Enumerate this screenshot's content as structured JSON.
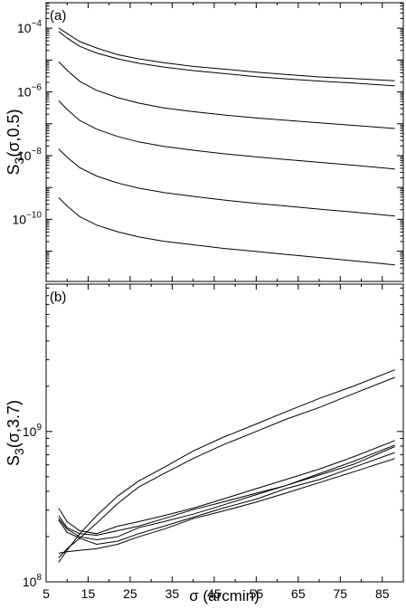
{
  "figure": {
    "xlabel": "σ (arcmin)"
  },
  "chart_data": [
    {
      "type": "line",
      "panel_label": "(a)",
      "ylabel_main": "S",
      "ylabel_sub": "3",
      "ylabel_args": "(σ,0.5)",
      "yscale": "log",
      "xlim": [
        5,
        90
      ],
      "ylim_log10": [
        -11.95,
        -3.2
      ],
      "ytick_labels": [
        {
          "log": -4,
          "base": "10",
          "exp": "−4"
        },
        {
          "log": -6,
          "base": "10",
          "exp": "−6"
        },
        {
          "log": -8,
          "base": "10",
          "exp": "−8"
        },
        {
          "log": -10,
          "base": "10",
          "exp": "−10"
        }
      ],
      "x": [
        8,
        10,
        13,
        17,
        22,
        27,
        33,
        40,
        47,
        55,
        62,
        70,
        78,
        88
      ],
      "series": [
        {
          "log10_values": [
            -3.99,
            -4.17,
            -4.42,
            -4.62,
            -4.83,
            -4.96,
            -5.08,
            -5.2,
            -5.28,
            -5.38,
            -5.45,
            -5.53,
            -5.58,
            -5.65
          ]
        },
        {
          "log10_values": [
            -4.1,
            -4.31,
            -4.57,
            -4.78,
            -4.96,
            -5.1,
            -5.22,
            -5.33,
            -5.42,
            -5.52,
            -5.59,
            -5.66,
            -5.72,
            -5.81
          ]
        },
        {
          "log10_values": [
            -5.05,
            -5.32,
            -5.67,
            -5.95,
            -6.18,
            -6.35,
            -6.5,
            -6.62,
            -6.72,
            -6.82,
            -6.89,
            -6.97,
            -7.05,
            -7.15
          ]
        },
        {
          "log10_values": [
            -6.28,
            -6.55,
            -6.9,
            -7.17,
            -7.4,
            -7.57,
            -7.71,
            -7.83,
            -7.94,
            -8.04,
            -8.12,
            -8.21,
            -8.3,
            -8.42
          ]
        },
        {
          "log10_values": [
            -7.79,
            -8.05,
            -8.38,
            -8.64,
            -8.86,
            -9.02,
            -9.16,
            -9.28,
            -9.39,
            -9.5,
            -9.58,
            -9.68,
            -9.77,
            -9.9
          ]
        },
        {
          "log10_values": [
            -9.32,
            -9.58,
            -9.92,
            -10.18,
            -10.39,
            -10.55,
            -10.69,
            -10.8,
            -10.91,
            -11.01,
            -11.1,
            -11.2,
            -11.3,
            -11.43
          ]
        }
      ]
    },
    {
      "type": "line",
      "panel_label": "(b)",
      "ylabel_main": "S",
      "ylabel_sub": "3",
      "ylabel_args": "(σ,3.7)",
      "yscale": "log",
      "xlim": [
        5,
        90
      ],
      "ylim_log10": [
        8.0,
        9.98
      ],
      "ytick_labels": [
        {
          "log": 9,
          "base": "10",
          "exp": "9"
        },
        {
          "log": 8,
          "base": "10",
          "exp": "8"
        }
      ],
      "xtick_labels": [
        "5",
        "15",
        "25",
        "35",
        "45",
        "55",
        "65",
        "75",
        "85"
      ],
      "x": [
        8,
        10,
        13,
        17,
        22,
        27,
        33,
        40,
        47,
        55,
        62,
        70,
        78,
        88
      ],
      "series": [
        {
          "log10_values": [
            8.13,
            8.21,
            8.32,
            8.44,
            8.57,
            8.67,
            8.76,
            8.87,
            8.96,
            9.05,
            9.13,
            9.22,
            9.3,
            9.41
          ]
        },
        {
          "log10_values": [
            8.16,
            8.22,
            8.29,
            8.39,
            8.52,
            8.63,
            8.72,
            8.82,
            8.91,
            9.0,
            9.08,
            9.16,
            9.25,
            9.36
          ]
        },
        {
          "log10_values": [
            8.49,
            8.4,
            8.34,
            8.32,
            8.37,
            8.4,
            8.44,
            8.49,
            8.55,
            8.62,
            8.68,
            8.75,
            8.83,
            8.94
          ]
        },
        {
          "log10_values": [
            8.42,
            8.35,
            8.3,
            8.28,
            8.3,
            8.36,
            8.4,
            8.45,
            8.51,
            8.58,
            8.64,
            8.72,
            8.8,
            8.91
          ]
        },
        {
          "log10_values": [
            8.44,
            8.36,
            8.32,
            8.31,
            8.34,
            8.37,
            8.42,
            8.48,
            8.53,
            8.59,
            8.64,
            8.71,
            8.78,
            8.9
          ]
        },
        {
          "log10_values": [
            8.41,
            8.33,
            8.29,
            8.25,
            8.27,
            8.32,
            8.37,
            8.43,
            8.49,
            8.55,
            8.62,
            8.68,
            8.76,
            8.86
          ]
        },
        {
          "log10_values": [
            8.19,
            8.2,
            8.21,
            8.22,
            8.25,
            8.3,
            8.35,
            8.42,
            8.47,
            8.53,
            8.59,
            8.66,
            8.73,
            8.82
          ]
        }
      ]
    }
  ]
}
